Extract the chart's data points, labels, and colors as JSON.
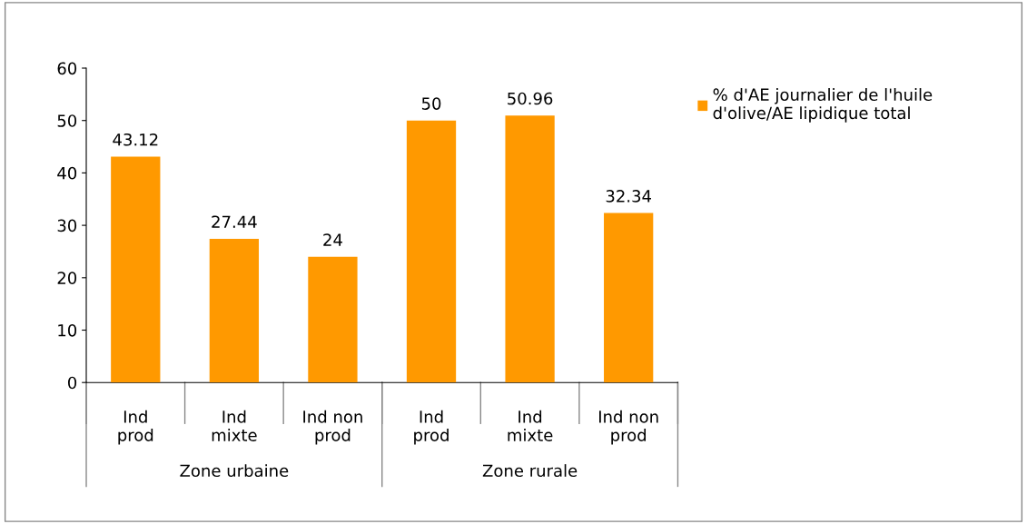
{
  "chart_data": {
    "type": "bar",
    "categories": [
      "Ind prod",
      "Ind mixte",
      "Ind non prod",
      "Ind prod",
      "Ind mixte",
      "Ind non prod"
    ],
    "series": [
      {
        "name": "% d'AE journalier de l'huile d'olive/AE lipidique total",
        "color": "#ff9900",
        "values": [
          43.12,
          27.44,
          24,
          50,
          50.96,
          32.34
        ]
      }
    ],
    "annotations": [
      "Zone urbaine",
      "Zone rurale"
    ],
    "ylim": [
      0,
      60
    ],
    "yticks": [
      0,
      10,
      20,
      30,
      40,
      50,
      60
    ],
    "data_labels": true,
    "grid": false,
    "legend": "right"
  }
}
